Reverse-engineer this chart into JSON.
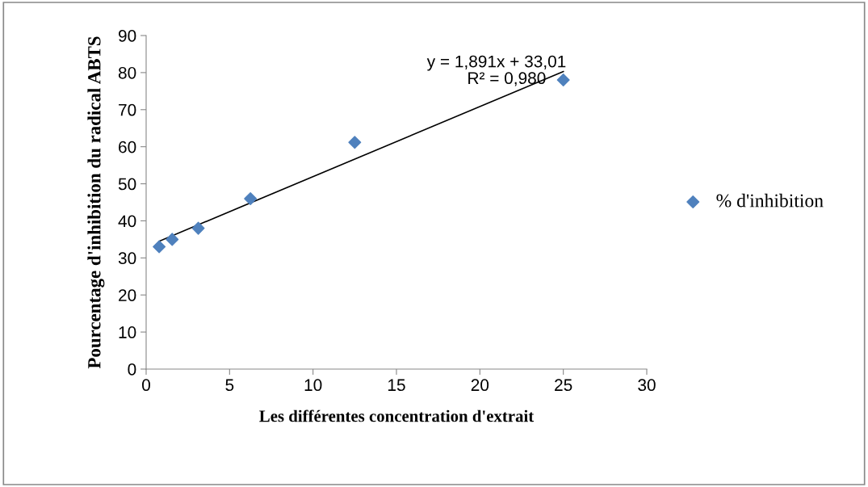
{
  "chart_data": {
    "type": "scatter",
    "xlabel": "Les différentes concentration d'extrait",
    "ylabel": "Pourcentage d'inhibition du radical ABTS",
    "x": [
      0.78,
      1.56,
      3.125,
      6.25,
      12.5,
      25
    ],
    "series": [
      {
        "name": "% d'inhibition",
        "color": "#4f81bd",
        "values": [
          33,
          35,
          38,
          46,
          61.2,
          78
        ],
        "marker": "diamond"
      },
      {
        "type": "line",
        "color": "#000000",
        "x": [
          0.78,
          25
        ],
        "values": [
          34.5,
          80.3
        ]
      }
    ],
    "annotations": [
      "y = 1,891x + 33,01",
      "R² = 0,980"
    ],
    "xlim": [
      0,
      30
    ],
    "xticks": [
      0,
      5,
      10,
      15,
      20,
      25,
      30
    ],
    "ylim": [
      0,
      90
    ],
    "yticks": [
      0,
      10,
      20,
      30,
      40,
      50,
      60,
      70,
      80,
      90
    ],
    "grid": false,
    "legend": "right"
  }
}
